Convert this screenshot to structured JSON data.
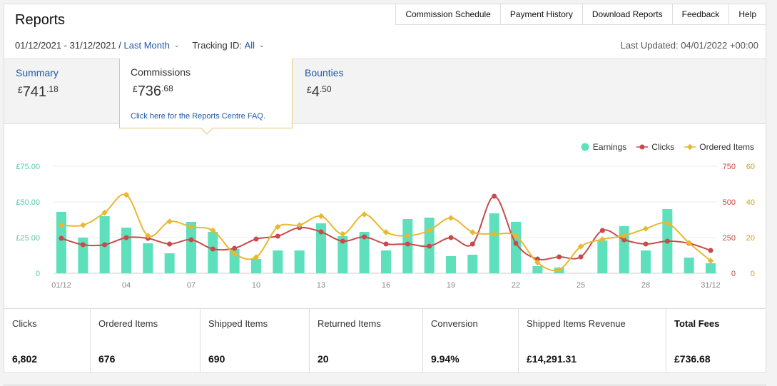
{
  "header": {
    "title": "Reports",
    "nav": [
      "Commission Schedule",
      "Payment History",
      "Download Reports",
      "Feedback",
      "Help"
    ]
  },
  "filters": {
    "date_range": "01/12/2021 - 31/12/2021 /",
    "period": "Last Month",
    "tracking_label": "Tracking ID:",
    "tracking_value": "All",
    "last_updated": "Last Updated: 04/01/2022 +00:00"
  },
  "tabs": {
    "summary": {
      "label": "Summary",
      "currency": "£",
      "whole": "741",
      "fraction": ".18"
    },
    "commissions": {
      "label": "Commissions",
      "currency": "£",
      "whole": "736",
      "fraction": ".68",
      "faq": "Click here for the Reports Centre FAQ."
    },
    "bounties": {
      "label": "Bounties",
      "currency": "£",
      "whole": "4",
      "fraction": ".50"
    }
  },
  "chart_data": {
    "type": "bar",
    "legend_position": "top-right",
    "grid": true,
    "x": [
      "01/12",
      "02",
      "03",
      "04",
      "05",
      "06",
      "07",
      "08",
      "09",
      "10",
      "11",
      "12",
      "13",
      "14",
      "15",
      "16",
      "17",
      "18",
      "19",
      "20",
      "21",
      "22",
      "23",
      "24",
      "25",
      "26",
      "27",
      "28",
      "29",
      "30",
      "31/12"
    ],
    "x_tick_labels": [
      "01/12",
      "04",
      "07",
      "10",
      "13",
      "16",
      "19",
      "22",
      "25",
      "28",
      "31/12"
    ],
    "y_left": {
      "ticks": [
        "0",
        "£25.00",
        "£50.00",
        "£75.00"
      ],
      "range": [
        0,
        75
      ],
      "color": "#5ac8a8"
    },
    "y_right_clicks": {
      "ticks": [
        "0",
        "250",
        "500",
        "750"
      ],
      "range": [
        0,
        750
      ],
      "color": "#c44"
    },
    "y_right_items": {
      "ticks": [
        "0",
        "20",
        "40",
        "60"
      ],
      "range": [
        0,
        60
      ],
      "color": "#d4a017"
    },
    "series": [
      {
        "name": "Earnings",
        "type": "bar",
        "color": "#5ee0bd",
        "values": [
          43,
          25,
          40,
          32,
          21,
          14,
          36,
          29,
          17,
          10,
          16,
          16,
          35,
          26,
          29,
          16,
          38,
          39,
          12,
          13,
          42,
          36,
          5,
          4,
          0,
          23,
          33,
          16,
          45,
          11,
          7
        ]
      },
      {
        "name": "Clicks",
        "type": "line",
        "color": "#c94a4a",
        "values": [
          245,
          200,
          200,
          250,
          245,
          205,
          235,
          170,
          175,
          240,
          260,
          320,
          290,
          225,
          255,
          205,
          205,
          190,
          250,
          205,
          540,
          210,
          100,
          115,
          115,
          300,
          235,
          205,
          225,
          210,
          160
        ]
      },
      {
        "name": "Ordered Items",
        "type": "line",
        "color": "#e8b830",
        "values": [
          27,
          27,
          34,
          44,
          21,
          29,
          26,
          24,
          11,
          9,
          26,
          27,
          32,
          22,
          33,
          23,
          21,
          24,
          31,
          23,
          22,
          21,
          6,
          2,
          15,
          19,
          21,
          25,
          28,
          17,
          7
        ]
      }
    ]
  },
  "metrics": [
    {
      "label": "Clicks",
      "value": "6,802"
    },
    {
      "label": "Ordered Items",
      "value": "676"
    },
    {
      "label": "Shipped Items",
      "value": "690"
    },
    {
      "label": "Returned Items",
      "value": "20"
    },
    {
      "label": "Conversion",
      "value": "9.94%"
    },
    {
      "label": "Shipped Items Revenue",
      "value": "£14,291.31"
    },
    {
      "label": "Total Fees",
      "value": "£736.68"
    }
  ]
}
